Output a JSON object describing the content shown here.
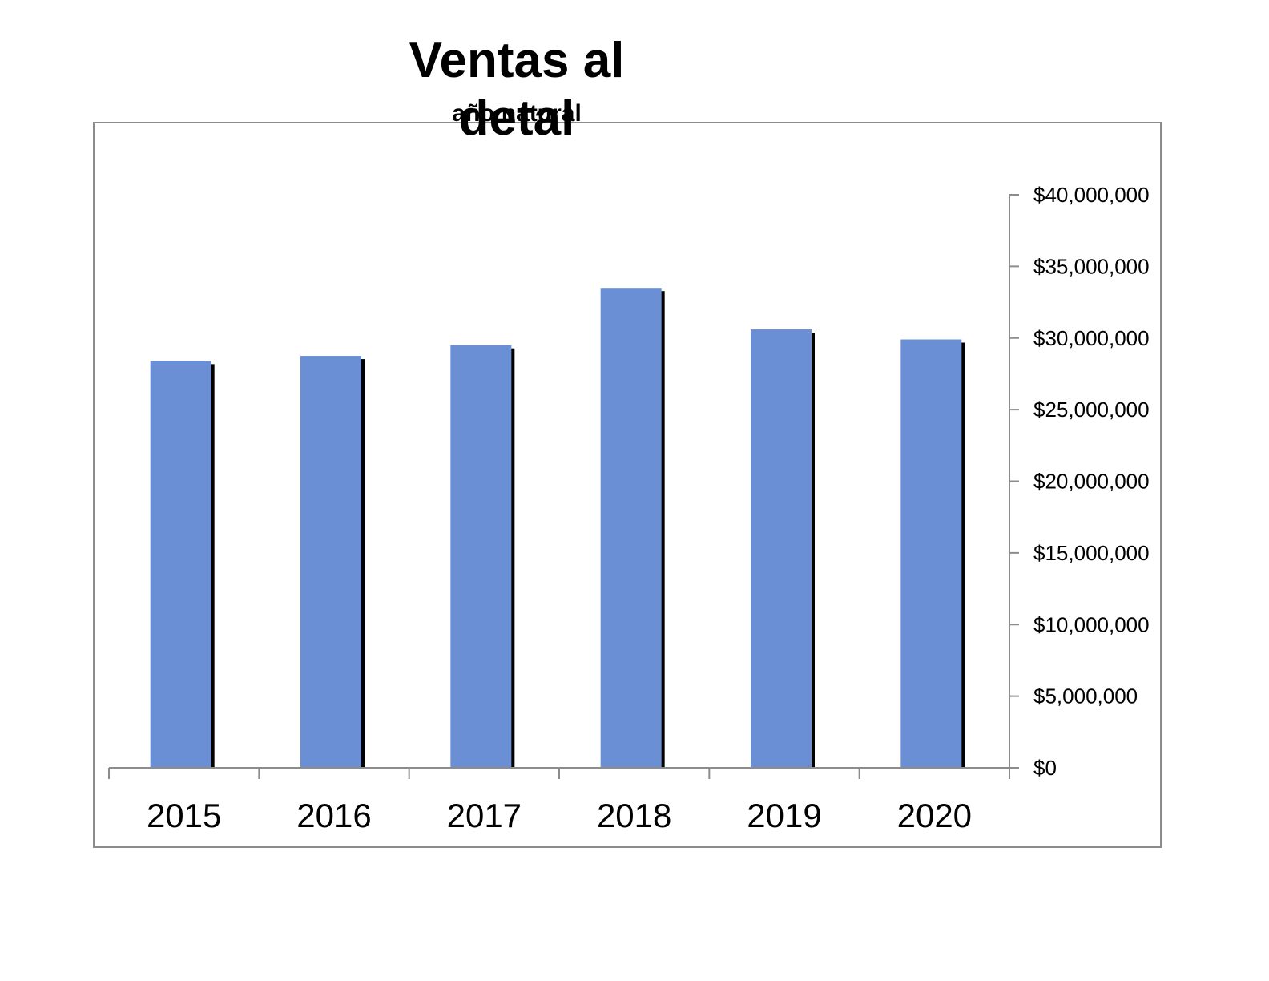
{
  "chart_data": {
    "type": "bar",
    "title": "Ventas al detal",
    "subtitle": "año natural",
    "xlabel": "",
    "ylabel": "",
    "categories": [
      "2015",
      "2016",
      "2017",
      "2018",
      "2019",
      "2020"
    ],
    "values": [
      28400000,
      28750000,
      29500000,
      33500000,
      30600000,
      29900000
    ],
    "ylim": [
      0,
      40000000
    ],
    "yticks": [
      0,
      5000000,
      10000000,
      15000000,
      20000000,
      25000000,
      30000000,
      35000000,
      40000000
    ],
    "ytick_labels": [
      "$0",
      "$5,000,000",
      "$10,000,000",
      "$15,000,000",
      "$20,000,000",
      "$25,000,000",
      "$30,000,000",
      "$35,000,000",
      "$40,000,000"
    ],
    "y_axis_position": "right",
    "grid": false,
    "legend": "none",
    "bar_color": "#6a8fd4",
    "bar_shadow_color": "#000000",
    "frame_color": "#8c8c8c"
  }
}
